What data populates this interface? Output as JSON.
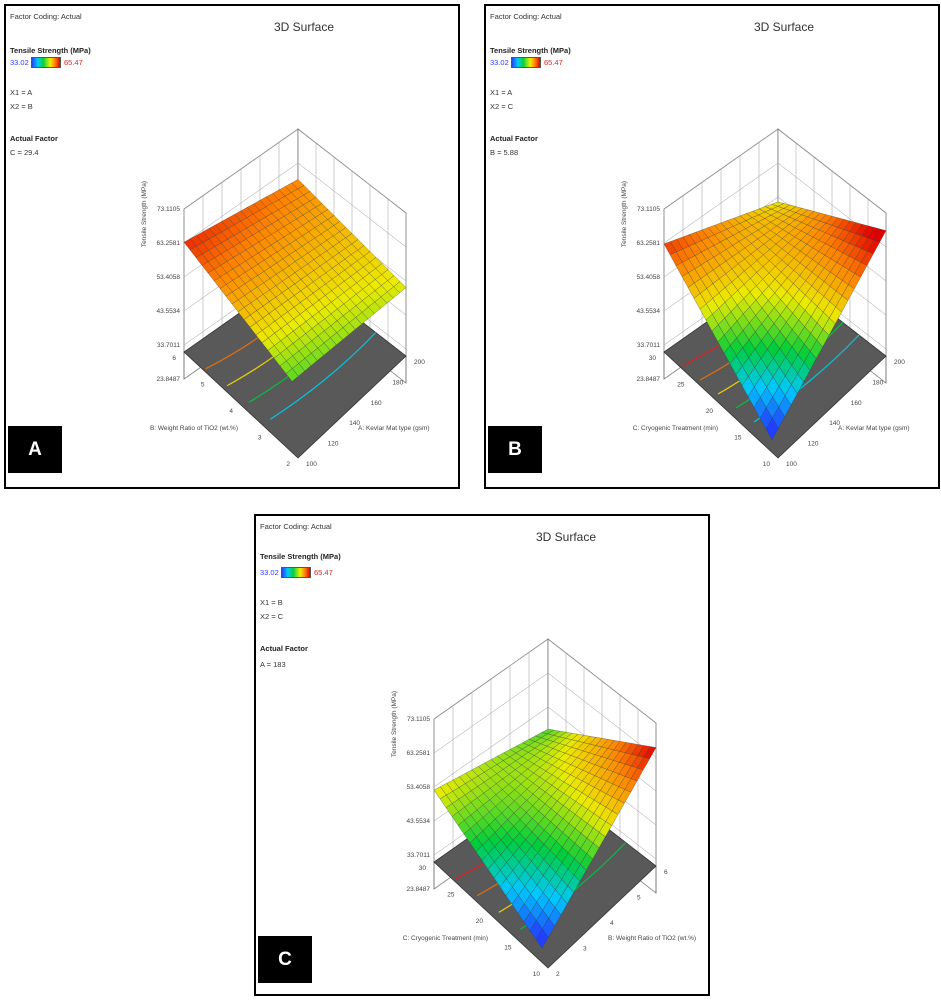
{
  "chart_data": [
    {
      "type": "surface3d",
      "panel_label": "A",
      "factor_coding": "Factor Coding: Actual",
      "title": "3D Surface",
      "response": "Tensile Strength (MPa)",
      "legend_min": "33.02",
      "legend_max": "65.47",
      "x1": "X1 = A",
      "x2": "X2 = B",
      "actual_factor_label": "Actual Factor",
      "actual_factor_value": "C = 29.4",
      "zlabel": "Tensile Strength (MPa)",
      "z_ticks": [
        "23.8487",
        "33.7011",
        "43.5534",
        "53.4058",
        "63.2581",
        "73.1105"
      ],
      "zlim": [
        23.8487,
        73.1105
      ],
      "right_axis_label": "A: Kevlar Mat type (gsm)",
      "right_ticks": [
        "100",
        "120",
        "140",
        "160",
        "180",
        "200"
      ],
      "left_axis_label": "B: Weight Ratio of TiO2 (wt.%)",
      "left_ticks": [
        "2",
        "3",
        "4",
        "5",
        "6"
      ],
      "corners": {
        "front": 47.5,
        "right": 51.5,
        "back": 58.5,
        "left": 63.5,
        "saddle": 0
      },
      "contour_colors": [
        "#e07010",
        "#f0d000",
        "#00c040",
        "#00c8e0"
      ]
    },
    {
      "type": "surface3d",
      "panel_label": "B",
      "factor_coding": "Factor Coding: Actual",
      "title": "3D Surface",
      "response": "Tensile Strength (MPa)",
      "legend_min": "33.02",
      "legend_max": "65.47",
      "x1": "X1 = A",
      "x2": "X2 = C",
      "actual_factor_label": "Actual Factor",
      "actual_factor_value": "B = 5.88",
      "zlabel": "Tensile Strength (MPa)",
      "z_ticks": [
        "23.8487",
        "33.7011",
        "43.5534",
        "53.4058",
        "63.2581",
        "73.1105"
      ],
      "zlim": [
        23.8487,
        73.1105
      ],
      "right_axis_label": "A: Kevlar Mat type (gsm)",
      "right_ticks": [
        "100",
        "120",
        "140",
        "160",
        "180",
        "200"
      ],
      "left_axis_label": "C: Cryogenic Treatment (min)",
      "left_ticks": [
        "10",
        "15",
        "20",
        "25",
        "30"
      ],
      "corners": {
        "front": 30.5,
        "right": 68.0,
        "back": 52.0,
        "left": 63.0,
        "saddle": 0
      },
      "contour_colors": [
        "#e02020",
        "#e07010",
        "#f0d000",
        "#00c040",
        "#00c8e0"
      ]
    },
    {
      "type": "surface3d",
      "panel_label": "C",
      "factor_coding": "Factor Coding: Actual",
      "title": "3D Surface",
      "response": "Tensile Strength (MPa)",
      "legend_min": "33.02",
      "legend_max": "65.47",
      "x1": "X1 = B",
      "x2": "X2 = C",
      "actual_factor_label": "Actual Factor",
      "actual_factor_value": "A = 183",
      "zlabel": "Tensile Strength (MPa)",
      "z_ticks": [
        "23.8487",
        "33.7011",
        "43.5534",
        "53.4058",
        "63.2581",
        "73.1105"
      ],
      "zlim": [
        23.8487,
        73.1105
      ],
      "right_axis_label": "B: Weight Ratio of TiO2 (wt.%)",
      "right_ticks": [
        "2",
        "3",
        "4",
        "5",
        "6"
      ],
      "left_axis_label": "C: Cryogenic Treatment (min)",
      "left_ticks": [
        "10",
        "15",
        "20",
        "25",
        "30"
      ],
      "corners": {
        "front": 31.0,
        "right": 66.0,
        "back": 47.0,
        "left": 52.5,
        "saddle": 0
      },
      "contour_colors": [
        "#e02020",
        "#e07010",
        "#f0d000",
        "#00c040"
      ]
    }
  ]
}
